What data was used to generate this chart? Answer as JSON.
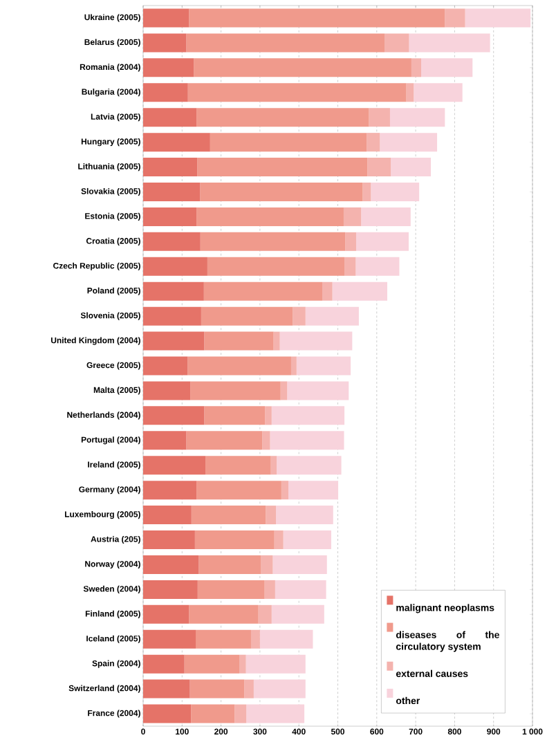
{
  "chart_data": {
    "type": "bar",
    "orientation": "horizontal",
    "stacked": true,
    "categories": [
      "Ukraine (2005)",
      "Belarus (2005)",
      "Romania (2004)",
      "Bulgaria (2004)",
      "Latvia (2005)",
      "Hungary (2005)",
      "Lithuania (2005)",
      "Slovakia (2005)",
      "Estonia (2005)",
      "Croatia (2005)",
      "Czech Republic (2005)",
      "Poland (2005)",
      "Slovenia (2005)",
      "United Kingdom (2004)",
      "Greece (2005)",
      "Malta (2005)",
      "Netherlands (2004)",
      "Portugal (2004)",
      "Ireland (2005)",
      "Germany (2004)",
      "Luxembourg (2005)",
      "Austria (205)",
      "Norway (2004)",
      "Sweden (2004)",
      "Finland (2005)",
      "Iceland (2005)",
      "Spain (2004)",
      "Switzerland (2004)",
      "France (2004)"
    ],
    "series": [
      {
        "name": "malignant neoplasms",
        "color": "#e57368",
        "values": [
          118,
          111,
          130,
          115,
          137,
          172,
          139,
          146,
          137,
          147,
          165,
          156,
          149,
          157,
          114,
          121,
          157,
          111,
          160,
          137,
          124,
          133,
          143,
          140,
          118,
          135,
          106,
          120,
          123
        ]
      },
      {
        "name": "diseases of the circulatory system",
        "color": "#f09a8c",
        "values": [
          657,
          509,
          559,
          561,
          443,
          402,
          437,
          418,
          378,
          372,
          352,
          304,
          235,
          178,
          266,
          232,
          156,
          195,
          168,
          218,
          191,
          204,
          160,
          172,
          178,
          142,
          141,
          140,
          112
        ]
      },
      {
        "name": "external causes",
        "color": "#f4b3ae",
        "values": [
          52,
          63,
          25,
          19,
          54,
          34,
          60,
          21,
          45,
          28,
          29,
          26,
          33,
          16,
          14,
          17,
          17,
          20,
          15,
          18,
          26,
          23,
          30,
          27,
          34,
          23,
          17,
          24,
          30
        ]
      },
      {
        "name": "other",
        "color": "#f8d3dc",
        "values": [
          168,
          208,
          132,
          125,
          141,
          147,
          103,
          124,
          127,
          135,
          112,
          141,
          137,
          186,
          139,
          158,
          187,
          190,
          166,
          128,
          147,
          123,
          139,
          131,
          135,
          136,
          153,
          133,
          149
        ]
      }
    ],
    "xlim": [
      0,
      1000
    ],
    "xticks": [
      0,
      100,
      200,
      300,
      400,
      500,
      600,
      700,
      800,
      900,
      {
        "value": 1000,
        "label": "1 000"
      }
    ],
    "grid": "x",
    "legend": "bottom right"
  }
}
